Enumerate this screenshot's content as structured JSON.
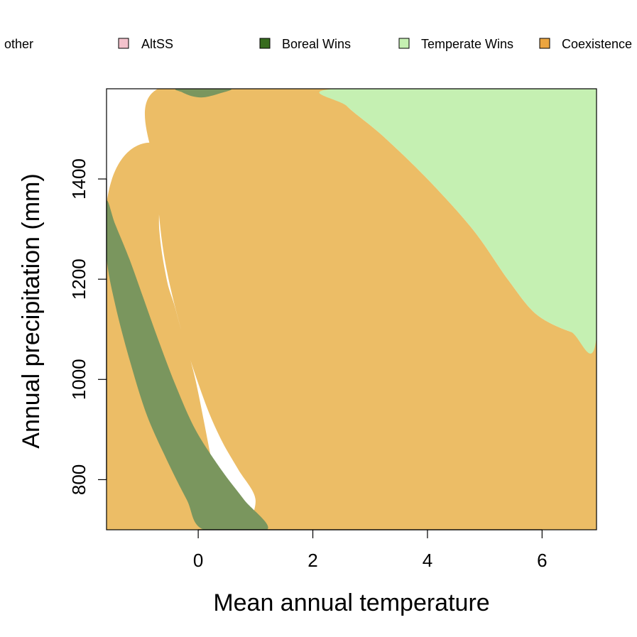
{
  "chart_data": {
    "type": "area",
    "xlabel": "Mean annual temperature",
    "ylabel": "Annual precipitation (mm)",
    "xlim": [
      -1.6,
      6.95
    ],
    "ylim": [
      700,
      1580
    ],
    "x_ticks": [
      0,
      2,
      4,
      6
    ],
    "y_ticks": [
      800,
      1000,
      1200,
      1400
    ],
    "legend": {
      "placement": "top",
      "entries": [
        {
          "label": "other",
          "color": "#ffffff"
        },
        {
          "label": "AltSS",
          "color": "#f4c2cc"
        },
        {
          "label": "Boreal Wins",
          "color": "#376b1e"
        },
        {
          "label": "Temperate Wins",
          "color": "#c5f0b2"
        },
        {
          "label": "Coexistence",
          "color": "#eba540"
        }
      ]
    },
    "regions": [
      {
        "label": "Coexistence",
        "color": "#ecbd66",
        "points": [
          [
            -0.7,
            1580
          ],
          [
            2.4,
            1580
          ],
          [
            2.6,
            1545
          ],
          [
            3.2,
            1488
          ],
          [
            4.0,
            1400
          ],
          [
            4.8,
            1298
          ],
          [
            5.4,
            1200
          ],
          [
            5.9,
            1130
          ],
          [
            6.5,
            1095
          ],
          [
            6.95,
            1085
          ],
          [
            6.95,
            700
          ],
          [
            -1.6,
            700
          ],
          [
            -1.6,
            1350
          ],
          [
            -0.73,
            1470
          ],
          [
            -0.68,
            1300
          ],
          [
            -0.55,
            1200
          ],
          [
            -0.42,
            1150
          ],
          [
            -0.3,
            1100
          ],
          [
            -0.05,
            1000
          ],
          [
            0.3,
            800
          ],
          [
            0.5,
            700
          ],
          [
            0.8,
            700
          ],
          [
            1.0,
            760
          ],
          [
            0.7,
            820
          ],
          [
            0.4,
            880
          ],
          [
            0.1,
            960
          ],
          [
            -0.3,
            1100
          ],
          [
            -0.6,
            1250
          ],
          [
            -0.72,
            1400
          ]
        ]
      },
      {
        "label": "Boreal Wins",
        "color": "#7a965e",
        "points": [
          [
            -1.6,
            1355
          ],
          [
            -1.45,
            1310
          ],
          [
            -1.2,
            1240
          ],
          [
            -0.95,
            1160
          ],
          [
            -0.7,
            1080
          ],
          [
            -0.4,
            990
          ],
          [
            -0.05,
            900
          ],
          [
            0.4,
            820
          ],
          [
            0.8,
            760
          ],
          [
            1.2,
            700
          ],
          [
            0.1,
            700
          ],
          [
            -0.2,
            760
          ],
          [
            -0.55,
            840
          ],
          [
            -0.9,
            930
          ],
          [
            -1.2,
            1040
          ],
          [
            -1.45,
            1150
          ],
          [
            -1.6,
            1245
          ]
        ]
      },
      {
        "label": "Boreal Wins",
        "color": "#7a965e",
        "points": [
          [
            -0.35,
            1580
          ],
          [
            0.55,
            1580
          ],
          [
            0.35,
            1570
          ],
          [
            0.1,
            1563
          ],
          [
            -0.1,
            1565
          ],
          [
            -0.28,
            1573
          ]
        ]
      },
      {
        "label": "Temperate Wins",
        "color": "#c5f0b2",
        "points": [
          [
            2.4,
            1580
          ],
          [
            6.95,
            1580
          ],
          [
            6.95,
            1085
          ],
          [
            6.5,
            1095
          ],
          [
            5.9,
            1130
          ],
          [
            5.4,
            1200
          ],
          [
            4.8,
            1298
          ],
          [
            4.0,
            1400
          ],
          [
            3.2,
            1488
          ],
          [
            2.6,
            1545
          ]
        ]
      }
    ]
  }
}
